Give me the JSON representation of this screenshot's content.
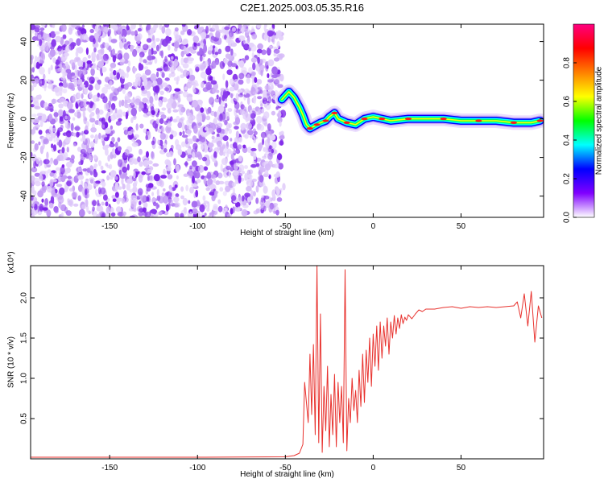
{
  "figure_title": "C2E1.2025.003.05.35.R16",
  "chart_data": [
    {
      "type": "heatmap",
      "xlabel": "Height of straight line (km)",
      "ylabel": "Frequency (Hz)",
      "xlim": [
        -195,
        97
      ],
      "ylim": [
        -51,
        49
      ],
      "xticks": [
        -150,
        -100,
        -50,
        0,
        50
      ],
      "yticks": [
        -40,
        -20,
        0,
        20,
        40
      ],
      "colorbar": {
        "label": "Normalized spectral amplitude",
        "range": [
          0,
          1
        ],
        "ticks": [
          0.0,
          0.2,
          0.4,
          0.6,
          0.8
        ],
        "colors": [
          "#ffffff",
          "#8000ff",
          "#0000ff",
          "#00ffff",
          "#00ff00",
          "#ffff00",
          "#ff8000",
          "#ff0000",
          "#ff0080"
        ]
      },
      "noise_region": {
        "x": [
          -195,
          -52
        ],
        "amplitude": "low (0.0-0.2)"
      },
      "ridge": {
        "x": [
          -52,
          -48,
          -45,
          -42,
          -40,
          -38,
          -36,
          -34,
          -32,
          -30,
          -27,
          -25,
          -22,
          -20,
          -15,
          -10,
          -5,
          0,
          5,
          10,
          20,
          30,
          40,
          50,
          60,
          70,
          80,
          90,
          95
        ],
        "y": [
          10,
          14,
          11,
          6,
          2,
          -3,
          -5,
          -4,
          -3,
          -2,
          -1,
          1,
          3,
          0,
          -2,
          -3,
          0,
          1,
          0,
          -1,
          0,
          0,
          0,
          -1,
          -1,
          -1,
          -2,
          -2,
          -1
        ]
      }
    },
    {
      "type": "line",
      "xlabel": "Height of straight line (km)",
      "ylabel": "SNR (10 * v/v)",
      "y_multiplier": "(x10⁴)",
      "xlim": [
        -195,
        97
      ],
      "ylim": [
        0,
        24000
      ],
      "xticks": [
        -150,
        -100,
        -50,
        0,
        50
      ],
      "yticks": [
        0.5,
        1.0,
        1.5,
        2.0
      ],
      "color": "#e8322e",
      "series": [
        {
          "x": [
            -195,
            -100,
            -50,
            -45,
            -42,
            -40,
            -39,
            -37,
            -36,
            -35,
            -34,
            -33,
            -32,
            -31,
            -30,
            -29,
            -28,
            -27,
            -26,
            -25,
            -24,
            -23,
            -22,
            -21,
            -20,
            -19,
            -18,
            -17,
            -16,
            -15,
            -14,
            -13,
            -12,
            -11,
            -10,
            -9,
            -8,
            -7,
            -6,
            -5,
            -4,
            -3,
            -2,
            -1,
            0,
            1,
            2,
            3,
            4,
            5,
            6,
            7,
            8,
            9,
            10,
            11,
            12,
            13,
            14,
            15,
            16,
            17,
            18,
            19,
            20,
            22,
            24,
            26,
            28,
            30,
            35,
            40,
            45,
            50,
            55,
            60,
            65,
            70,
            75,
            80,
            82,
            84,
            86,
            88,
            90,
            92,
            94,
            96
          ],
          "y": [
            200,
            200,
            250,
            400,
            700,
            1800,
            9500,
            4500,
            13000,
            5500,
            14200,
            3000,
            24000,
            2000,
            18000,
            800,
            9000,
            3500,
            11500,
            1500,
            8000,
            3000,
            10500,
            1500,
            9500,
            4500,
            9000,
            2000,
            23500,
            1000,
            7500,
            4500,
            10000,
            6000,
            8500,
            4500,
            11000,
            6500,
            13000,
            7000,
            13500,
            9500,
            15000,
            9000,
            15500,
            11500,
            16500,
            11000,
            17000,
            12500,
            16500,
            14000,
            17500,
            13000,
            17000,
            15000,
            17800,
            15500,
            17500,
            16200,
            17900,
            16800,
            17600,
            17200,
            17900,
            17400,
            18000,
            18500,
            18300,
            18600,
            18600,
            18800,
            18900,
            18700,
            18900,
            18800,
            18900,
            18800,
            18900,
            19000,
            19500,
            17500,
            20500,
            16500,
            20800,
            14500,
            19000,
            17500
          ]
        }
      ]
    }
  ]
}
